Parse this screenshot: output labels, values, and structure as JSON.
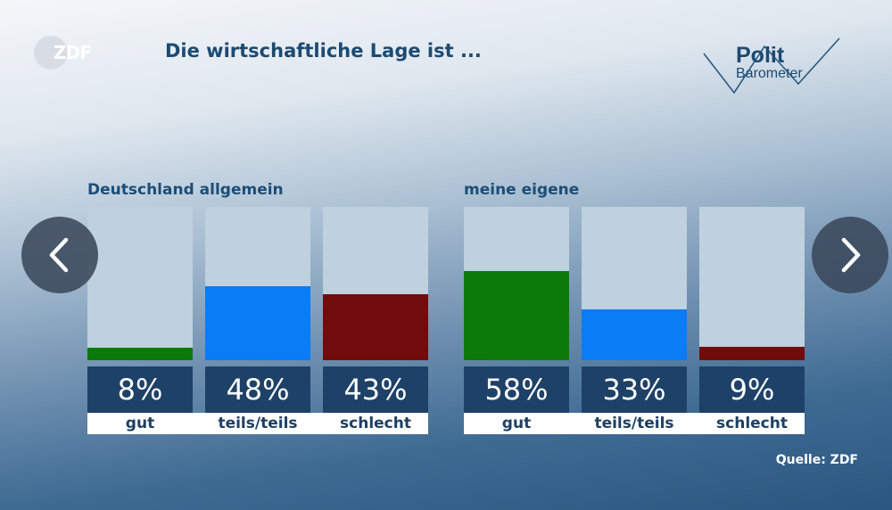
{
  "header": {
    "logo_text": "ZDF",
    "title": "Die wirtschaftliche Lage ist ...",
    "brand_line1": "Polit",
    "brand_line2": "Barometer"
  },
  "chart_data": {
    "type": "bar",
    "title": "Die wirtschaftliche Lage ist ...",
    "ylim": [
      0,
      100
    ],
    "groups": [
      {
        "name": "Deutschland allgemein",
        "categories": [
          "gut",
          "teils/teils",
          "schlecht"
        ],
        "values": [
          8,
          48,
          43
        ],
        "labels": [
          "8%",
          "48%",
          "43%"
        ],
        "colors": [
          "#0b7a0b",
          "#0a7cf5",
          "#720c0c"
        ]
      },
      {
        "name": "meine eigene",
        "categories": [
          "gut",
          "teils/teils",
          "schlecht"
        ],
        "values": [
          58,
          33,
          9
        ],
        "labels": [
          "58%",
          "33%",
          "9%"
        ],
        "colors": [
          "#0b7a0b",
          "#0a7cf5",
          "#720c0c"
        ]
      }
    ]
  },
  "navigation": {
    "prev_icon": "chevron-left-icon",
    "next_icon": "chevron-right-icon"
  },
  "footer": {
    "source": "Quelle: ZDF"
  }
}
